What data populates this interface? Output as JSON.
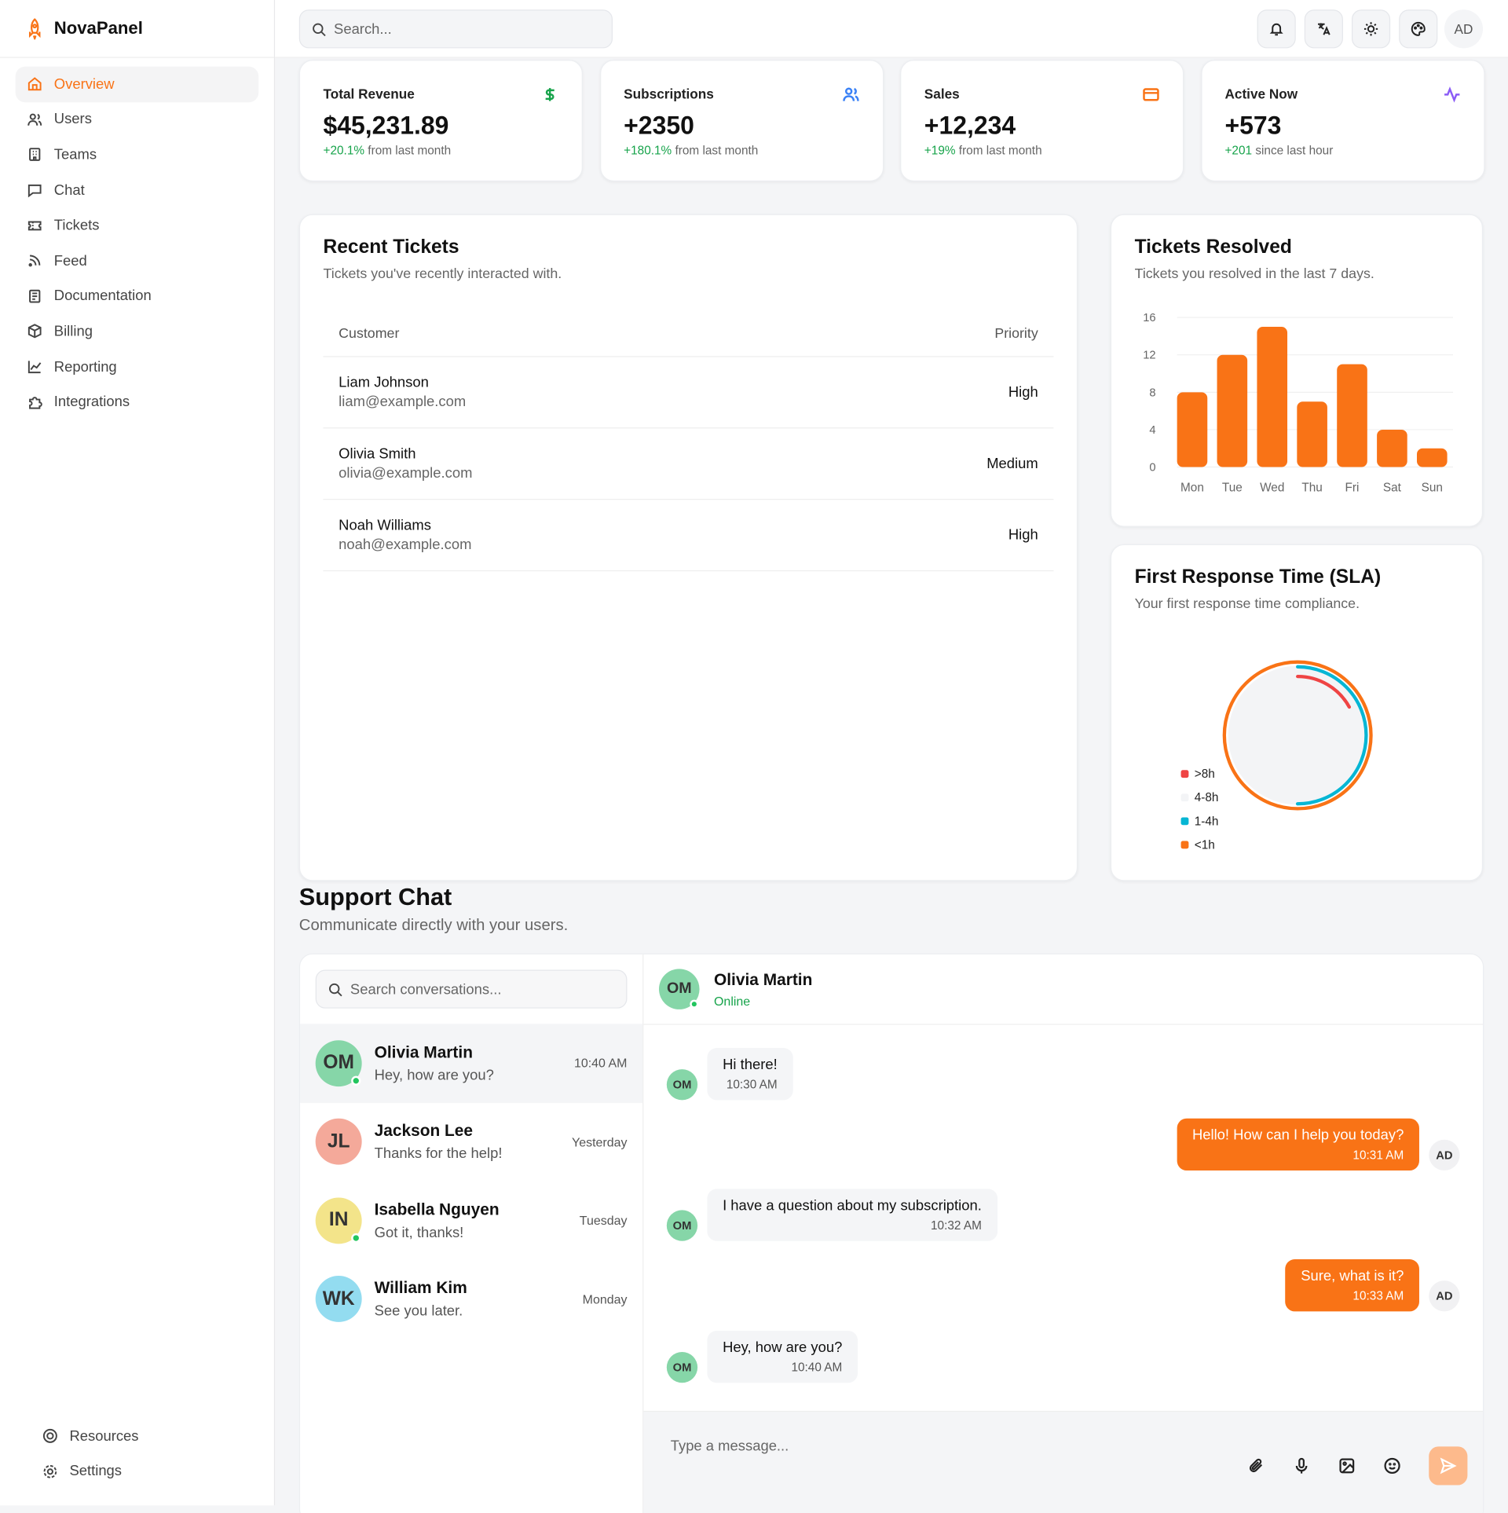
{
  "app": {
    "name": "NovaPanel"
  },
  "sidebar": {
    "items": [
      {
        "label": "Overview",
        "icon": "home-icon"
      },
      {
        "label": "Users",
        "icon": "users-icon"
      },
      {
        "label": "Teams",
        "icon": "building-icon"
      },
      {
        "label": "Chat",
        "icon": "message-icon"
      },
      {
        "label": "Tickets",
        "icon": "ticket-icon"
      },
      {
        "label": "Feed",
        "icon": "rss-icon"
      },
      {
        "label": "Documentation",
        "icon": "document-icon"
      },
      {
        "label": "Billing",
        "icon": "package-icon"
      },
      {
        "label": "Reporting",
        "icon": "chart-icon"
      },
      {
        "label": "Integrations",
        "icon": "puzzle-icon"
      }
    ],
    "bottom": [
      {
        "label": "Resources"
      },
      {
        "label": "Settings"
      }
    ]
  },
  "topbar": {
    "search_placeholder": "Search...",
    "avatar": "AD"
  },
  "stats": [
    {
      "title": "Total Revenue",
      "value": "$45,231.89",
      "change": "+20.1%",
      "suffix": "from last month",
      "color": "#16a34a"
    },
    {
      "title": "Subscriptions",
      "value": "+2350",
      "change": "+180.1%",
      "suffix": "from last month",
      "color": "#3b82f6"
    },
    {
      "title": "Sales",
      "value": "+12,234",
      "change": "+19%",
      "suffix": "from last month",
      "color": "#f97316"
    },
    {
      "title": "Active Now",
      "value": "+573",
      "change": "+201",
      "suffix": "since last hour",
      "color": "#8b5cf6"
    }
  ],
  "recent_tickets": {
    "title": "Recent Tickets",
    "subtitle": "Tickets you've recently interacted with.",
    "columns": [
      "Customer",
      "Priority"
    ],
    "rows": [
      {
        "name": "Liam Johnson",
        "email": "liam@example.com",
        "priority": "High"
      },
      {
        "name": "Olivia Smith",
        "email": "olivia@example.com",
        "priority": "Medium"
      },
      {
        "name": "Noah Williams",
        "email": "noah@example.com",
        "priority": "High"
      }
    ]
  },
  "chart_data": [
    {
      "type": "bar",
      "title": "Tickets Resolved",
      "subtitle": "Tickets you resolved in the last 7 days.",
      "categories": [
        "Mon",
        "Tue",
        "Wed",
        "Thu",
        "Fri",
        "Sat",
        "Sun"
      ],
      "values": [
        8,
        12,
        15,
        7,
        11,
        4,
        2
      ],
      "ylim": [
        0,
        16
      ],
      "yticks": [
        0,
        4,
        8,
        12,
        16
      ],
      "color": "#f97316"
    },
    {
      "type": "radial-bar",
      "title": "First Response Time (SLA)",
      "subtitle": "Your first response time compliance.",
      "legend": "bottom-left",
      "series": [
        {
          "name": ">8h",
          "value": 17,
          "color": "#ef4444"
        },
        {
          "name": "4-8h",
          "value": 0,
          "color": "#f3f4f6"
        },
        {
          "name": "1-4h",
          "value": 50,
          "color": "#06b6d4"
        },
        {
          "name": "<1h",
          "value": 100,
          "color": "#f97316"
        }
      ]
    }
  ],
  "support": {
    "title": "Support Chat",
    "subtitle": "Communicate directly with your users.",
    "search_placeholder": "Search conversations...",
    "conversations": [
      {
        "initials": "OM",
        "name": "Olivia Martin",
        "preview": "Hey, how are you?",
        "time": "10:40 AM",
        "color": "#86d6a8",
        "online": true
      },
      {
        "initials": "JL",
        "name": "Jackson Lee",
        "preview": "Thanks for the help!",
        "time": "Yesterday",
        "color": "#f4a99a",
        "online": false
      },
      {
        "initials": "IN",
        "name": "Isabella Nguyen",
        "preview": "Got it, thanks!",
        "time": "Tuesday",
        "color": "#f3e48a",
        "online": true
      },
      {
        "initials": "WK",
        "name": "William Kim",
        "preview": "See you later.",
        "time": "Monday",
        "color": "#93dcf0",
        "online": false
      }
    ],
    "active": {
      "initials": "OM",
      "name": "Olivia Martin",
      "status": "Online"
    },
    "messages": [
      {
        "from": "OM",
        "text": "Hi there!",
        "time": "10:30 AM"
      },
      {
        "from": "AD",
        "text": "Hello! How can I help you today?",
        "time": "10:31 AM"
      },
      {
        "from": "OM",
        "text": "I have a question about my subscription.",
        "time": "10:32 AM"
      },
      {
        "from": "AD",
        "text": "Sure, what is it?",
        "time": "10:33 AM"
      },
      {
        "from": "OM",
        "text": "Hey, how are you?",
        "time": "10:40 AM"
      }
    ],
    "composer_placeholder": "Type a message..."
  }
}
